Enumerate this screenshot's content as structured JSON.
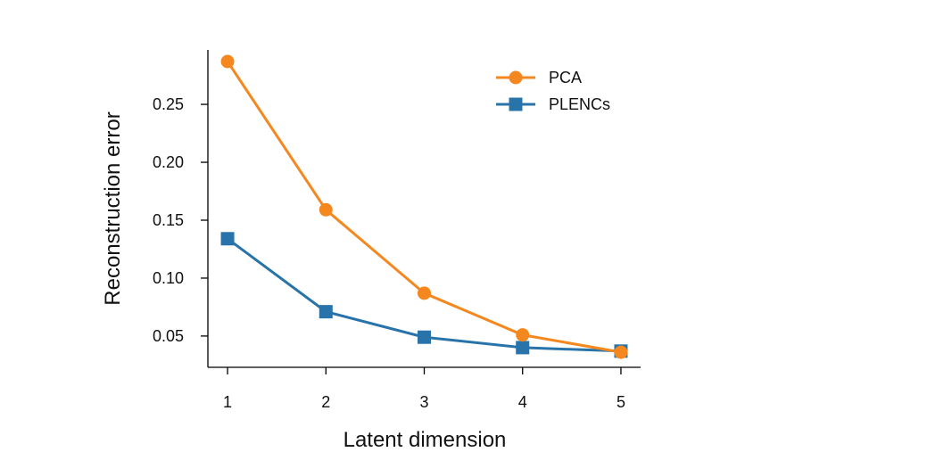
{
  "chart_data": {
    "type": "line",
    "title": "",
    "xlabel": "Latent dimension",
    "ylabel": "Reconstruction error",
    "x": [
      1,
      2,
      3,
      4,
      5
    ],
    "xticks": [
      "1",
      "2",
      "3",
      "4",
      "5"
    ],
    "yticks": [
      0.05,
      0.1,
      0.15,
      0.2,
      0.25
    ],
    "ytick_labels": [
      "0.05",
      "0.10",
      "0.15",
      "0.20",
      "0.25"
    ],
    "xlim": [
      0.8,
      5.2
    ],
    "ylim": [
      0.023,
      0.297
    ],
    "grid": false,
    "legend": "top-right",
    "series": [
      {
        "name": "PCA",
        "marker": "circle",
        "color": "#f5871f",
        "values": [
          0.287,
          0.159,
          0.087,
          0.051,
          0.036
        ]
      },
      {
        "name": "PLENCs",
        "marker": "square",
        "color": "#2874aa",
        "values": [
          0.134,
          0.071,
          0.049,
          0.04,
          0.037
        ]
      }
    ]
  }
}
